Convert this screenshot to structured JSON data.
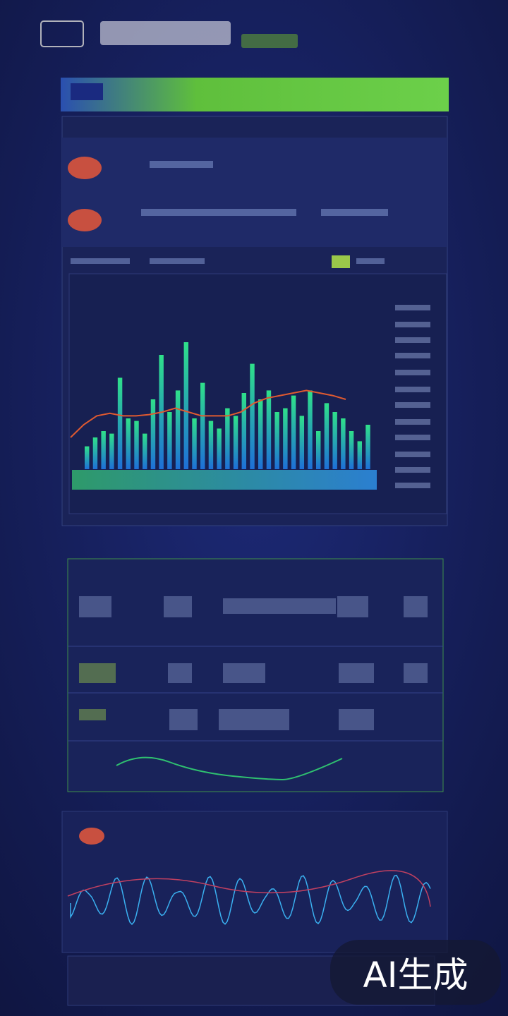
{
  "watermark": "AI生成",
  "chart_data": {
    "type": "bar",
    "values": [
      18,
      25,
      30,
      28,
      72,
      40,
      38,
      28,
      55,
      90,
      45,
      62,
      100,
      40,
      68,
      38,
      32,
      48,
      42,
      60,
      83,
      55,
      62,
      45,
      48,
      58,
      42,
      62,
      30,
      52,
      45,
      40,
      30,
      22,
      35
    ],
    "line_values": [
      25,
      35,
      42,
      44,
      42,
      42,
      43,
      45,
      48,
      45,
      42,
      42,
      42,
      45,
      52,
      56,
      58,
      60,
      62,
      60,
      58,
      55
    ],
    "ylim": [
      0,
      100
    ]
  }
}
